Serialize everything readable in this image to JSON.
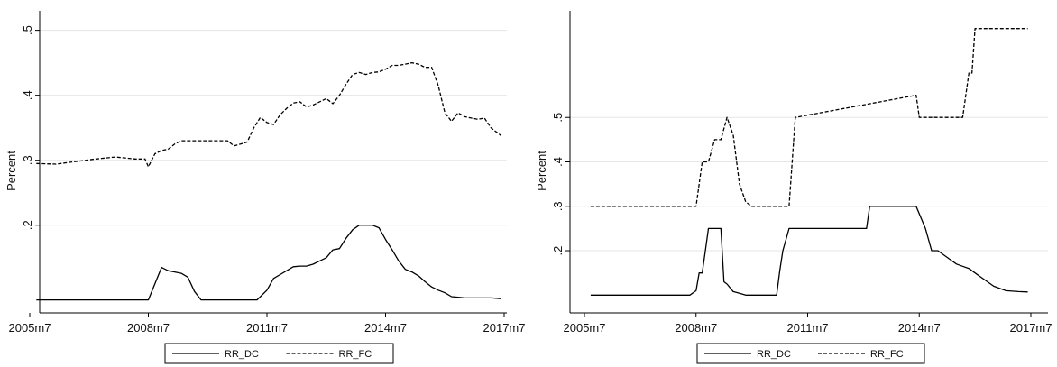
{
  "chart_data": [
    {
      "type": "line",
      "ylabel": "Percent",
      "grid": true,
      "legend": "bottom-center",
      "x_ticks": [
        "2005m7",
        "2008m7",
        "2011m7",
        "2014m7",
        "2017m7"
      ],
      "y_ticks": [
        ".2",
        ".3",
        ".4",
        ".5"
      ],
      "xlim": [
        "2005m7",
        "2017m7"
      ],
      "ylim": [
        0.065,
        0.53
      ],
      "series": [
        {
          "name": "RR_DC",
          "color": "#000000",
          "style": "solid",
          "x": [
            "2005m9",
            "2008m5",
            "2008m7",
            "2008m9",
            "2008m11",
            "2009m1",
            "2009m3",
            "2009m5",
            "2009m7",
            "2009m9",
            "2009m11",
            "2011m4",
            "2011m7",
            "2011m9",
            "2011m11",
            "2012m1",
            "2012m3",
            "2012m5",
            "2012m7",
            "2012m9",
            "2012m11",
            "2013m1",
            "2013m3",
            "2013m5",
            "2013m7",
            "2013m9",
            "2013m11",
            "2014m1",
            "2014m3",
            "2014m5",
            "2014m7",
            "2014m9",
            "2014m11",
            "2015m1",
            "2015m3",
            "2015m5",
            "2015m7",
            "2015m9",
            "2015m11",
            "2016m1",
            "2016m3",
            "2016m5",
            "2016m7",
            "2016m9",
            "2016m11",
            "2017m1",
            "2017m3",
            "2017m6"
          ],
          "values": [
            0.085,
            0.085,
            0.085,
            0.11,
            0.135,
            0.13,
            0.128,
            0.126,
            0.12,
            0.098,
            0.085,
            0.085,
            0.1,
            0.118,
            0.124,
            0.13,
            0.136,
            0.137,
            0.137,
            0.14,
            0.145,
            0.15,
            0.162,
            0.164,
            0.18,
            0.193,
            0.2,
            0.2,
            0.2,
            0.196,
            0.178,
            0.162,
            0.145,
            0.132,
            0.128,
            0.122,
            0.113,
            0.105,
            0.1,
            0.096,
            0.09,
            0.089,
            0.088,
            0.088,
            0.088,
            0.088,
            0.088,
            0.087
          ]
        },
        {
          "name": "RR_FC",
          "color": "#000000",
          "style": "dashed",
          "x": [
            "2005m9",
            "2006m3",
            "2006m9",
            "2007m3",
            "2007m9",
            "2008m3",
            "2008m6",
            "2008m7",
            "2008m9",
            "2008m11",
            "2009m1",
            "2009m3",
            "2009m5",
            "2009m7",
            "2009m9",
            "2009m11",
            "2010m3",
            "2010m7",
            "2010m9",
            "2010m11",
            "2011m1",
            "2011m3",
            "2011m5",
            "2011m7",
            "2011m9",
            "2011m11",
            "2012m1",
            "2012m3",
            "2012m5",
            "2012m7",
            "2012m9",
            "2012m11",
            "2013m1",
            "2013m3",
            "2013m5",
            "2013m7",
            "2013m9",
            "2013m11",
            "2014m1",
            "2014m3",
            "2014m5",
            "2014m7",
            "2014m9",
            "2014m11",
            "2015m1",
            "2015m3",
            "2015m5",
            "2015m7",
            "2015m9",
            "2015m11",
            "2016m1",
            "2016m3",
            "2016m5",
            "2016m7",
            "2016m9",
            "2016m11",
            "2017m1",
            "2017m3",
            "2017m6"
          ],
          "values": [
            0.295,
            0.294,
            0.298,
            0.302,
            0.305,
            0.302,
            0.302,
            0.29,
            0.31,
            0.315,
            0.317,
            0.325,
            0.33,
            0.33,
            0.33,
            0.33,
            0.33,
            0.33,
            0.322,
            0.325,
            0.328,
            0.35,
            0.366,
            0.358,
            0.355,
            0.37,
            0.38,
            0.388,
            0.39,
            0.382,
            0.385,
            0.39,
            0.395,
            0.387,
            0.4,
            0.417,
            0.432,
            0.435,
            0.432,
            0.435,
            0.436,
            0.44,
            0.446,
            0.446,
            0.448,
            0.45,
            0.448,
            0.443,
            0.443,
            0.415,
            0.373,
            0.36,
            0.373,
            0.367,
            0.365,
            0.363,
            0.365,
            0.35,
            0.338
          ]
        }
      ]
    },
    {
      "type": "line",
      "ylabel": "Percent",
      "grid": true,
      "legend": "bottom-center",
      "x_ticks": [
        "2005m7",
        "2008m7",
        "2011m7",
        "2014m7",
        "2017m7"
      ],
      "y_ticks": [
        ".2",
        ".3",
        ".4",
        ".5"
      ],
      "xlim": [
        "2005m7",
        "2017m7"
      ],
      "ylim": [
        0.06,
        0.74
      ],
      "series": [
        {
          "name": "RR_DC",
          "color": "#000000",
          "style": "solid",
          "x": [
            "2005m9",
            "2008m5",
            "2008m7",
            "2008m8",
            "2008m9",
            "2008m10",
            "2008m11",
            "2009m1",
            "2009m3",
            "2009m4",
            "2009m5",
            "2009m7",
            "2009m9",
            "2009m11",
            "2010m1",
            "2010m7",
            "2010m9",
            "2010m10",
            "2010m11",
            "2011m1",
            "2011m3",
            "2013m2",
            "2013m3",
            "2014m6",
            "2014m9",
            "2014m11",
            "2015m1",
            "2015m3",
            "2015m5",
            "2015m7",
            "2015m9",
            "2015m11",
            "2016m1",
            "2016m3",
            "2016m5",
            "2016m7",
            "2016m9",
            "2016m11",
            "2017m1",
            "2017m3",
            "2017m6"
          ],
          "values": [
            0.1,
            0.1,
            0.11,
            0.15,
            0.15,
            0.2,
            0.25,
            0.25,
            0.25,
            0.13,
            0.125,
            0.108,
            0.104,
            0.1,
            0.1,
            0.1,
            0.1,
            0.155,
            0.2,
            0.25,
            0.25,
            0.25,
            0.3,
            0.3,
            0.25,
            0.2,
            0.2,
            0.19,
            0.18,
            0.17,
            0.165,
            0.16,
            0.15,
            0.14,
            0.13,
            0.12,
            0.115,
            0.11,
            0.109,
            0.108,
            0.107
          ]
        },
        {
          "name": "RR_FC",
          "color": "#000000",
          "style": "dashed",
          "x": [
            "2005m9",
            "2008m5",
            "2008m7",
            "2008m9",
            "2008m11",
            "2009m1",
            "2009m3",
            "2009m5",
            "2009m7",
            "2009m9",
            "2009m11",
            "2010m1",
            "2010m7",
            "2010m9",
            "2010m11",
            "2011m1",
            "2011m3",
            "2014m6",
            "2014m7",
            "2014m9",
            "2015m9",
            "2015m11",
            "2015m12",
            "2016m1",
            "2016m3",
            "2017m6"
          ],
          "values": [
            0.3,
            0.3,
            0.3,
            0.4,
            0.4,
            0.45,
            0.45,
            0.5,
            0.46,
            0.35,
            0.31,
            0.3,
            0.3,
            0.3,
            0.3,
            0.3,
            0.5,
            0.55,
            0.5,
            0.5,
            0.5,
            0.6,
            0.6,
            0.7,
            0.7,
            0.7
          ]
        }
      ]
    }
  ]
}
